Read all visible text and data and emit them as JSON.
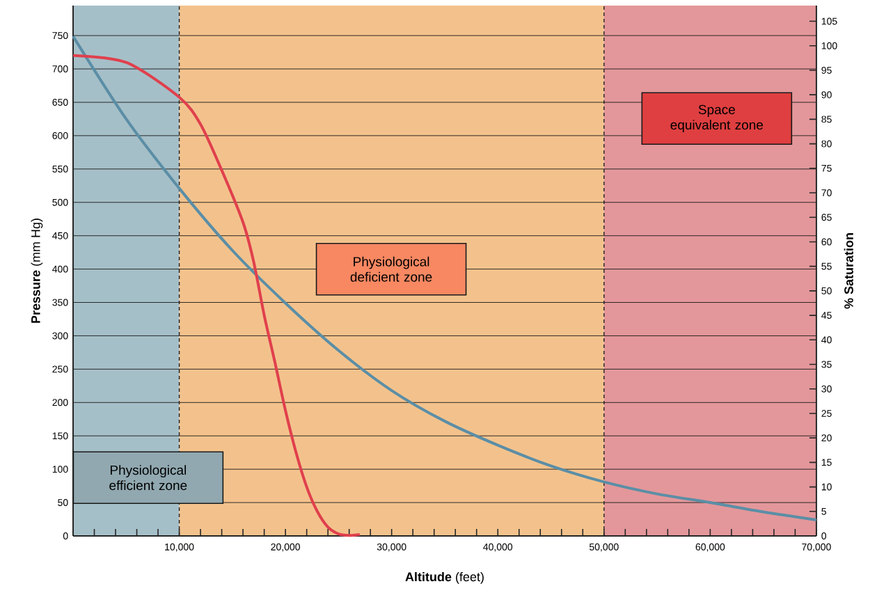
{
  "chart_data": {
    "type": "line",
    "xlabel": "**Altitude** (feet)",
    "ylabel": "**Pressure** (mm Hg)",
    "y2label": "% Saturation",
    "xlim": [
      0,
      70000
    ],
    "ylim": [
      0,
      795
    ],
    "y2lim": [
      0,
      108.2
    ],
    "xticks": [
      {
        "value": 2000,
        "label": null
      },
      {
        "value": 4000,
        "label": null
      },
      {
        "value": 6000,
        "label": null
      },
      {
        "value": 8000,
        "label": null
      },
      {
        "value": 10000,
        "label": "10,000"
      },
      {
        "value": 12000,
        "label": null
      },
      {
        "value": 14000,
        "label": null
      },
      {
        "value": 16000,
        "label": null
      },
      {
        "value": 18000,
        "label": null
      },
      {
        "value": 20000,
        "label": "20,000"
      },
      {
        "value": 22000,
        "label": null
      },
      {
        "value": 24000,
        "label": null
      },
      {
        "value": 26000,
        "label": null
      },
      {
        "value": 28000,
        "label": null
      },
      {
        "value": 30000,
        "label": "30,000"
      },
      {
        "value": 32000,
        "label": null
      },
      {
        "value": 34000,
        "label": null
      },
      {
        "value": 36000,
        "label": null
      },
      {
        "value": 38000,
        "label": null
      },
      {
        "value": 40000,
        "label": "40,000"
      },
      {
        "value": 42000,
        "label": null
      },
      {
        "value": 44000,
        "label": null
      },
      {
        "value": 46000,
        "label": null
      },
      {
        "value": 48000,
        "label": null
      },
      {
        "value": 50000,
        "label": "50,000"
      },
      {
        "value": 52000,
        "label": null
      },
      {
        "value": 54000,
        "label": null
      },
      {
        "value": 56000,
        "label": null
      },
      {
        "value": 58000,
        "label": null
      },
      {
        "value": 60000,
        "label": "60,000"
      },
      {
        "value": 62000,
        "label": null
      },
      {
        "value": 64000,
        "label": null
      },
      {
        "value": 66000,
        "label": null
      },
      {
        "value": 68000,
        "label": null
      },
      {
        "value": 70000,
        "label": "70,000"
      }
    ],
    "yticks": [
      0,
      50,
      100,
      150,
      200,
      250,
      300,
      350,
      400,
      450,
      500,
      550,
      600,
      650,
      700,
      750
    ],
    "y2ticks": [
      0,
      5,
      10,
      15,
      20,
      25,
      30,
      35,
      40,
      45,
      50,
      55,
      60,
      65,
      70,
      75,
      80,
      85,
      90,
      95,
      100,
      105
    ],
    "grid": "y",
    "legend": false,
    "marker": "none",
    "line_style": "solid",
    "series": [
      {
        "color": "#5b8ea6",
        "axis": "y",
        "x": [
          0,
          5000,
          10000,
          15000,
          20000,
          25000,
          30000,
          35000,
          40000,
          45000,
          50000,
          55000,
          60000,
          65000,
          70000
        ],
        "values": [
          749,
          625,
          521,
          428,
          349,
          278,
          218,
          172,
          136,
          105,
          81,
          63,
          50,
          36,
          24
        ]
      },
      {
        "color": "#e0404d",
        "axis": "y2",
        "x": [
          0,
          5000,
          10000,
          12000,
          14000,
          16000,
          17000,
          18000,
          19000,
          20000,
          21000,
          22000,
          23000,
          24000,
          25000,
          26000,
          27000
        ],
        "values": [
          98,
          96.6,
          89.5,
          84,
          74.6,
          64,
          56,
          45,
          35.5,
          25.6,
          17,
          10,
          5,
          1.8,
          0.4,
          0.1,
          0.3
        ]
      }
    ],
    "ref_lines": [
      {
        "axis": "x",
        "value": 10000,
        "line_style": "dashed"
      },
      {
        "axis": "x",
        "value": 50000,
        "line_style": "dashed"
      }
    ],
    "bands": [
      {
        "axis": "x",
        "from": 0,
        "to": 10000,
        "label": "Physiological efficient zone",
        "color": "#a5bfc8"
      },
      {
        "axis": "x",
        "from": 10000,
        "to": 50000,
        "label": "Physiological deficient zone",
        "color": "#f3c28c"
      },
      {
        "axis": "x",
        "from": 50000,
        "to": 70000,
        "label": "Space equivalent zone",
        "color": "#e3979a"
      }
    ]
  }
}
